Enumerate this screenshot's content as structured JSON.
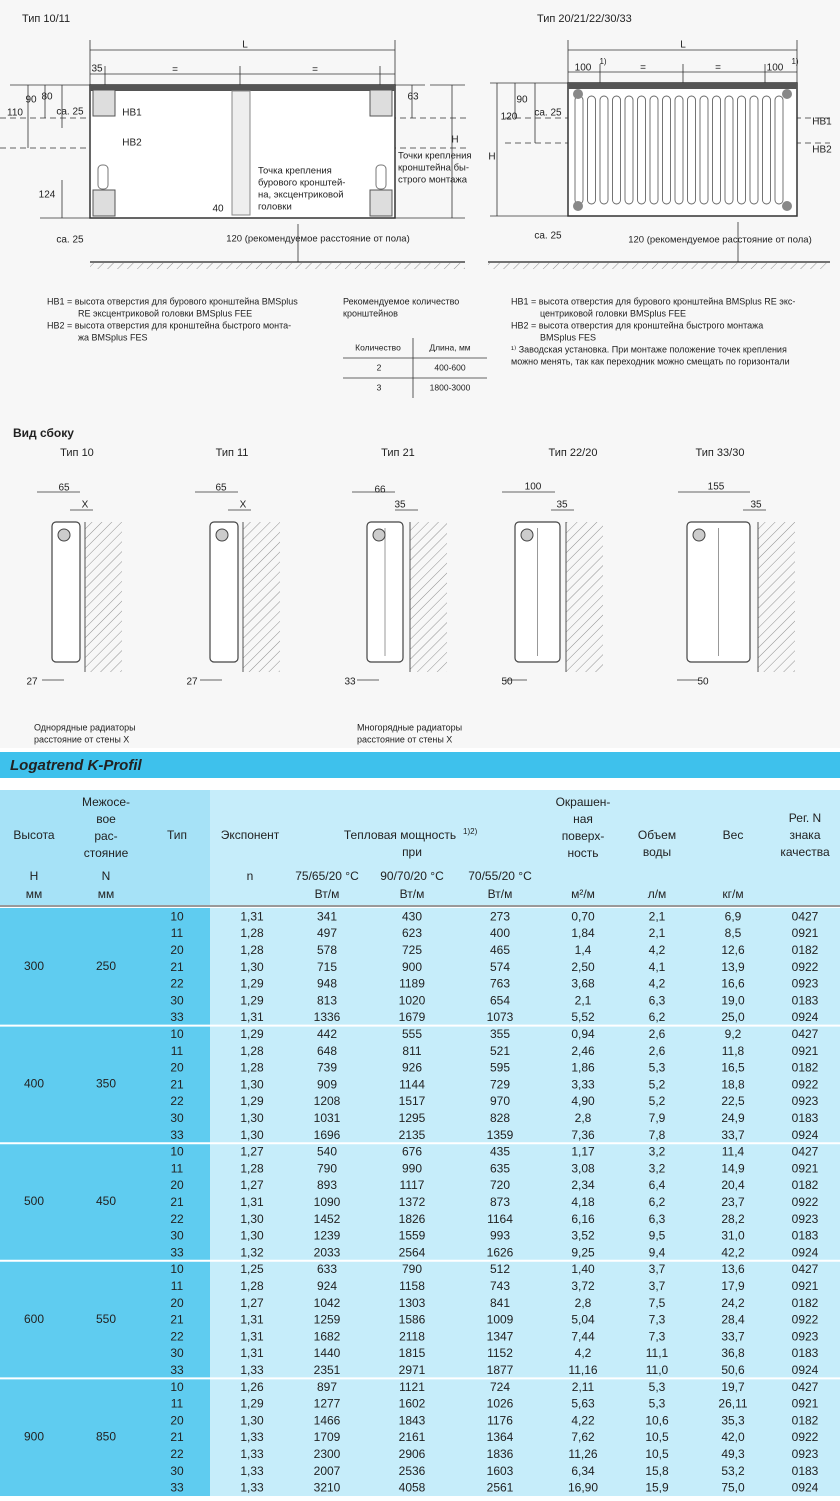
{
  "drawings": {
    "front_left": {
      "title": "Тип 10/11",
      "labels": [
        "L",
        "35",
        "=",
        "=",
        "90",
        "80",
        "110",
        "ca. 25",
        "HB1",
        "HB2",
        "63",
        "H",
        "124",
        "40",
        "ca. 25"
      ],
      "callout_drill": [
        "Точка крепления",
        "бурового кронштей-",
        "на, эксцентриковой",
        "головки"
      ],
      "callout_quick": [
        "Точки крепления",
        "кронштейна бы-",
        "строго монтажа"
      ],
      "floor_note": "120 (рекомендуемое расстояние от пола)"
    },
    "front_right": {
      "title": "Тип 20/21/22/30/33",
      "labels": [
        "L",
        "100",
        "1)",
        "=",
        "=",
        "100",
        "1)",
        "90",
        "120",
        "ca. 25",
        "HB1",
        "HB2",
        "H",
        "ca. 25"
      ],
      "floor_note": "120 (рекомендуемое расстояние от пола)"
    },
    "notes_left": [
      "HB1 = высота отверстия для бурового кронштейна BMSplus",
      "RE эксцентриковой головки BMSplus FEE",
      "HB2 = высота отверстия для кронштейна быстрого монта-",
      "жа BMSplus FES"
    ],
    "brackets": {
      "title": [
        "Рекомендуемое количество",
        "кронштейнов"
      ],
      "header": [
        "Количество",
        "Длина, мм"
      ],
      "rows": [
        [
          "2",
          "400-600"
        ],
        [
          "3",
          "1800-3000"
        ]
      ]
    },
    "notes_right": [
      "HB1 = высота отверстия для бурового кронштейна BMSplus RE экс-",
      "центриковой головки BMSplus FEE",
      "HB2 = высота отверстия для кронштейна быстрого монтажа",
      "BMSplus FES",
      "¹⁾ Заводская установка. При монтаже положение точек крепления",
      "можно менять, так как переходник можно смещать по горизонтали"
    ],
    "side_view": {
      "title": "Вид сбоку",
      "views": [
        {
          "title": "Тип 10",
          "dims": [
            "65",
            "X",
            "27"
          ]
        },
        {
          "title": "Тип 11",
          "dims": [
            "65",
            "X",
            "27"
          ]
        },
        {
          "title": "Тип 21",
          "dims": [
            "66",
            "35",
            "33"
          ]
        },
        {
          "title": "Тип 22/20",
          "dims": [
            "100",
            "35",
            "50"
          ]
        },
        {
          "title": "Тип 33/30",
          "dims": [
            "155",
            "35",
            "50"
          ]
        }
      ],
      "captions": [
        [
          "Однорядные радиаторы",
          "расстояние от стены X"
        ],
        [
          "Многорядные радиаторы",
          "расстояние от стены X"
        ]
      ]
    }
  },
  "table": {
    "title": "Logatrend K-Profil",
    "header": {
      "height": "Высота",
      "spacing": [
        "Межосе-",
        "вое",
        "рас-",
        "стояние"
      ],
      "type": "Тип",
      "exponent": "Экспонент",
      "power": "Тепловая мощность",
      "power_note": "1)2)",
      "power_suffix": "при",
      "surface": [
        "Окрашен-",
        "ная",
        "поверх-",
        "ность"
      ],
      "volume": [
        "Объем",
        "воды"
      ],
      "weight": "Вес",
      "reg": [
        "Рег. N",
        "знака",
        "качества"
      ],
      "units": {
        "height": [
          "H",
          "мм"
        ],
        "spacing": [
          "N",
          "мм"
        ],
        "exponent": "n",
        "power": [
          [
            "75/65/20 °C",
            "Вт/м"
          ],
          [
            "90/70/20 °C",
            "Вт/м"
          ],
          [
            "70/55/20 °C",
            "Вт/м"
          ]
        ],
        "surface": "м²/м",
        "volume": "л/м",
        "weight": "кг/м"
      }
    },
    "groups": [
      {
        "height": "300",
        "spacing": "250",
        "rows": [
          [
            "10",
            "1,31",
            "341",
            "430",
            "273",
            "0,70",
            "2,1",
            "6,9",
            "0427"
          ],
          [
            "11",
            "1,28",
            "497",
            "623",
            "400",
            "1,84",
            "2,1",
            "8,5",
            "0921"
          ],
          [
            "20",
            "1,28",
            "578",
            "725",
            "465",
            "1,4",
            "4,2",
            "12,6",
            "0182"
          ],
          [
            "21",
            "1,30",
            "715",
            "900",
            "574",
            "2,50",
            "4,1",
            "13,9",
            "0922"
          ],
          [
            "22",
            "1,29",
            "948",
            "1189",
            "763",
            "3,68",
            "4,2",
            "16,6",
            "0923"
          ],
          [
            "30",
            "1,29",
            "813",
            "1020",
            "654",
            "2,1",
            "6,3",
            "19,0",
            "0183"
          ],
          [
            "33",
            "1,31",
            "1336",
            "1679",
            "1073",
            "5,52",
            "6,2",
            "25,0",
            "0924"
          ]
        ]
      },
      {
        "height": "400",
        "spacing": "350",
        "rows": [
          [
            "10",
            "1,29",
            "442",
            "555",
            "355",
            "0,94",
            "2,6",
            "9,2",
            "0427"
          ],
          [
            "11",
            "1,28",
            "648",
            "811",
            "521",
            "2,46",
            "2,6",
            "11,8",
            "0921"
          ],
          [
            "20",
            "1,28",
            "739",
            "926",
            "595",
            "1,86",
            "5,3",
            "16,5",
            "0182"
          ],
          [
            "21",
            "1,30",
            "909",
            "1144",
            "729",
            "3,33",
            "5,2",
            "18,8",
            "0922"
          ],
          [
            "22",
            "1,29",
            "1208",
            "1517",
            "970",
            "4,90",
            "5,2",
            "22,5",
            "0923"
          ],
          [
            "30",
            "1,30",
            "1031",
            "1295",
            "828",
            "2,8",
            "7,9",
            "24,9",
            "0183"
          ],
          [
            "33",
            "1,30",
            "1696",
            "2135",
            "1359",
            "7,36",
            "7,8",
            "33,7",
            "0924"
          ]
        ]
      },
      {
        "height": "500",
        "spacing": "450",
        "rows": [
          [
            "10",
            "1,27",
            "540",
            "676",
            "435",
            "1,17",
            "3,2",
            "11,4",
            "0427"
          ],
          [
            "11",
            "1,28",
            "790",
            "990",
            "635",
            "3,08",
            "3,2",
            "14,9",
            "0921"
          ],
          [
            "20",
            "1,27",
            "893",
            "1117",
            "720",
            "2,34",
            "6,4",
            "20,4",
            "0182"
          ],
          [
            "21",
            "1,31",
            "1090",
            "1372",
            "873",
            "4,18",
            "6,2",
            "23,7",
            "0922"
          ],
          [
            "22",
            "1,30",
            "1452",
            "1826",
            "1164",
            "6,16",
            "6,3",
            "28,2",
            "0923"
          ],
          [
            "30",
            "1,30",
            "1239",
            "1559",
            "993",
            "3,52",
            "9,5",
            "31,0",
            "0183"
          ],
          [
            "33",
            "1,32",
            "2033",
            "2564",
            "1626",
            "9,25",
            "9,4",
            "42,2",
            "0924"
          ]
        ]
      },
      {
        "height": "600",
        "spacing": "550",
        "rows": [
          [
            "10",
            "1,25",
            "633",
            "790",
            "512",
            "1,40",
            "3,7",
            "13,6",
            "0427"
          ],
          [
            "11",
            "1,28",
            "924",
            "1158",
            "743",
            "3,72",
            "3,7",
            "17,9",
            "0921"
          ],
          [
            "20",
            "1,27",
            "1042",
            "1303",
            "841",
            "2,8",
            "7,5",
            "24,2",
            "0182"
          ],
          [
            "21",
            "1,31",
            "1259",
            "1586",
            "1009",
            "5,04",
            "7,3",
            "28,4",
            "0922"
          ],
          [
            "22",
            "1,31",
            "1682",
            "2118",
            "1347",
            "7,44",
            "7,3",
            "33,7",
            "0923"
          ],
          [
            "30",
            "1,31",
            "1440",
            "1815",
            "1152",
            "4,2",
            "11,1",
            "36,8",
            "0183"
          ],
          [
            "33",
            "1,33",
            "2351",
            "2971",
            "1877",
            "11,16",
            "11,0",
            "50,6",
            "0924"
          ]
        ]
      },
      {
        "height": "900",
        "spacing": "850",
        "rows": [
          [
            "10",
            "1,26",
            "897",
            "1121",
            "724",
            "2,11",
            "5,3",
            "19,7",
            "0427"
          ],
          [
            "11",
            "1,29",
            "1277",
            "1602",
            "1026",
            "5,63",
            "5,3",
            "26,11",
            "0921"
          ],
          [
            "20",
            "1,30",
            "1466",
            "1843",
            "1176",
            "4,22",
            "10,6",
            "35,3",
            "0182"
          ],
          [
            "21",
            "1,33",
            "1709",
            "2161",
            "1364",
            "7,62",
            "10,5",
            "42,0",
            "0922"
          ],
          [
            "22",
            "1,33",
            "2300",
            "2906",
            "1836",
            "11,26",
            "10,5",
            "49,3",
            "0923"
          ],
          [
            "30",
            "1,33",
            "2007",
            "2536",
            "1603",
            "6,34",
            "15,8",
            "53,2",
            "0183"
          ],
          [
            "33",
            "1,33",
            "3210",
            "4058",
            "2561",
            "16,90",
            "15,9",
            "75,0",
            "0924"
          ]
        ]
      }
    ]
  }
}
